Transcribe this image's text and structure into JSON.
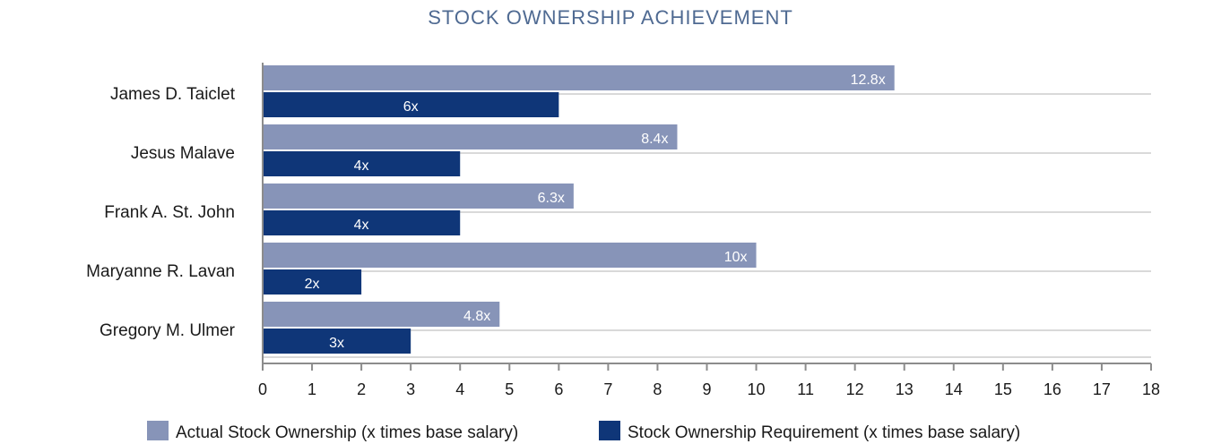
{
  "chart_data": {
    "type": "bar",
    "orientation": "horizontal",
    "title": "STOCK OWNERSHIP ACHIEVEMENT",
    "categories": [
      "James D. Taiclet",
      "Jesus Malave",
      "Frank A. St. John",
      "Maryanne R. Lavan",
      "Gregory M. Ulmer"
    ],
    "series": [
      {
        "name": "Actual Stock Ownership (x times base salary)",
        "values": [
          12.8,
          8.4,
          6.3,
          10,
          4.8
        ],
        "labels": [
          "12.8x",
          "8.4x",
          "6.3x",
          "10x",
          "4.8x"
        ],
        "color": "#8794b8"
      },
      {
        "name": "Stock Ownership Requirement (x times base salary)",
        "values": [
          6,
          4,
          4,
          2,
          3
        ],
        "labels": [
          "6x",
          "4x",
          "4x",
          "2x",
          "3x"
        ],
        "color": "#0f3678"
      }
    ],
    "xlim": [
      0,
      18
    ],
    "xticks": [
      "0",
      "1",
      "2",
      "3",
      "4",
      "5",
      "6",
      "7",
      "8",
      "9",
      "10",
      "11",
      "12",
      "13",
      "14",
      "15",
      "16",
      "17",
      "18"
    ],
    "grid": "horizontal",
    "legend_position": "bottom",
    "colors": {
      "title": "#4f6a92",
      "gridline": "#d9d9d9",
      "axis": "#8c8c8c"
    }
  }
}
